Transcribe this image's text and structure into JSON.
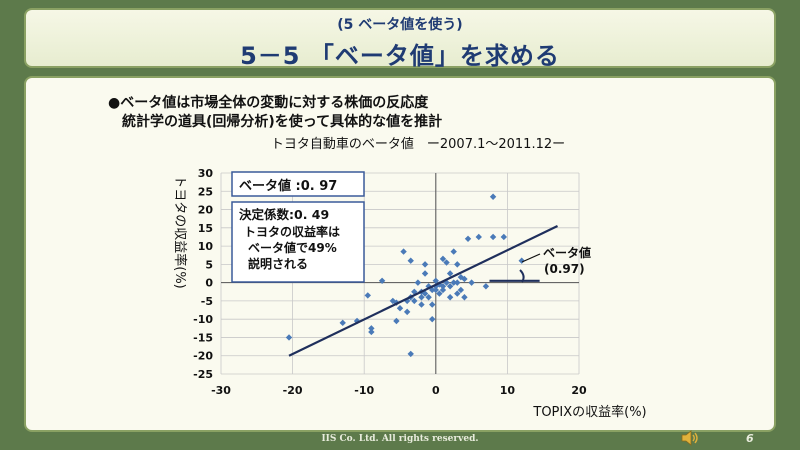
{
  "header": {
    "subtitle": "(5  ベータ値を使う)",
    "title": "5－5 「ベータ値」を求める"
  },
  "bullets": [
    "●ベータ値は市場全体の変動に対する株価の反応度",
    "統計学の道具(回帰分析)を使って具体的な値を推計"
  ],
  "annotations": {
    "beta_box": "ベータ値 :0. 97",
    "r2_box": [
      "決定係数:0. 49",
      "トヨタの収益率は",
      "ベータ値で49%",
      "説明される"
    ],
    "beta_label": [
      "ベータ値",
      "(0.97)"
    ]
  },
  "footer": {
    "copyright": "IIS Co. Ltd. All rights reserved.",
    "page": "6",
    "speaker_icon": "speaker-icon"
  },
  "colors": {
    "points": "#4a7ab8",
    "line": "#1f2f5c",
    "title": "#1f3b73"
  },
  "chart_data": {
    "type": "scatter",
    "title": "トヨタ自動車のベータ値　ー2007.1～2011.12ー",
    "xlabel": "TOPIXの収益率(%)",
    "ylabel": "トヨタの収益率(%)",
    "xlim": [
      -30,
      20
    ],
    "ylim": [
      -25,
      30
    ],
    "xticks": [
      -30,
      -20,
      -10,
      0,
      10,
      20
    ],
    "yticks": [
      -25,
      -20,
      -15,
      -10,
      -5,
      0,
      5,
      10,
      15,
      20,
      25,
      30
    ],
    "grid": true,
    "points": [
      [
        -20.5,
        -15
      ],
      [
        -13,
        -11
      ],
      [
        -11,
        -10.5
      ],
      [
        -9,
        -12.5
      ],
      [
        -9,
        -13.5
      ],
      [
        -9.5,
        -3.5
      ],
      [
        -7.5,
        0.5
      ],
      [
        -6,
        -5
      ],
      [
        -5.5,
        -5.5
      ],
      [
        -5.5,
        -10.5
      ],
      [
        -5,
        -7
      ],
      [
        -4.5,
        8.5
      ],
      [
        -4,
        -5
      ],
      [
        -4,
        -8
      ],
      [
        -3.5,
        6
      ],
      [
        -3.5,
        -4
      ],
      [
        -3.5,
        -19.5
      ],
      [
        -3,
        -2.5
      ],
      [
        -3,
        -5
      ],
      [
        -2.5,
        0
      ],
      [
        -2,
        -2.5
      ],
      [
        -2,
        -4
      ],
      [
        -2,
        -6
      ],
      [
        -1.5,
        5
      ],
      [
        -1.5,
        2.5
      ],
      [
        -1.5,
        -3
      ],
      [
        -1,
        -1
      ],
      [
        -1,
        -4
      ],
      [
        -0.5,
        -2
      ],
      [
        -0.5,
        -6
      ],
      [
        -0.5,
        -10
      ],
      [
        0,
        0.5
      ],
      [
        0,
        -1
      ],
      [
        0,
        -2
      ],
      [
        0.5,
        -0.5
      ],
      [
        0.5,
        -3
      ],
      [
        1,
        6.5
      ],
      [
        1,
        -1
      ],
      [
        1,
        -2
      ],
      [
        1.5,
        0
      ],
      [
        1.5,
        5.5
      ],
      [
        2,
        2.5
      ],
      [
        2,
        -1
      ],
      [
        2,
        -4
      ],
      [
        2.5,
        8.5
      ],
      [
        2.5,
        0
      ],
      [
        3,
        0
      ],
      [
        3,
        -3
      ],
      [
        3,
        5
      ],
      [
        3.5,
        -2
      ],
      [
        3.5,
        1.5
      ],
      [
        4,
        -4
      ],
      [
        4,
        1
      ],
      [
        4.5,
        12
      ],
      [
        5,
        0
      ],
      [
        6,
        12.5
      ],
      [
        7,
        -1
      ],
      [
        8,
        23.5
      ],
      [
        8,
        12.5
      ],
      [
        9.5,
        12.5
      ],
      [
        12,
        6
      ]
    ],
    "regression": {
      "x": [
        -20.5,
        17
      ],
      "y": [
        -20,
        15.5
      ]
    },
    "beta_line": {
      "x": [
        7.5,
        14.5
      ],
      "y": [
        0.5,
        0.5
      ]
    }
  }
}
